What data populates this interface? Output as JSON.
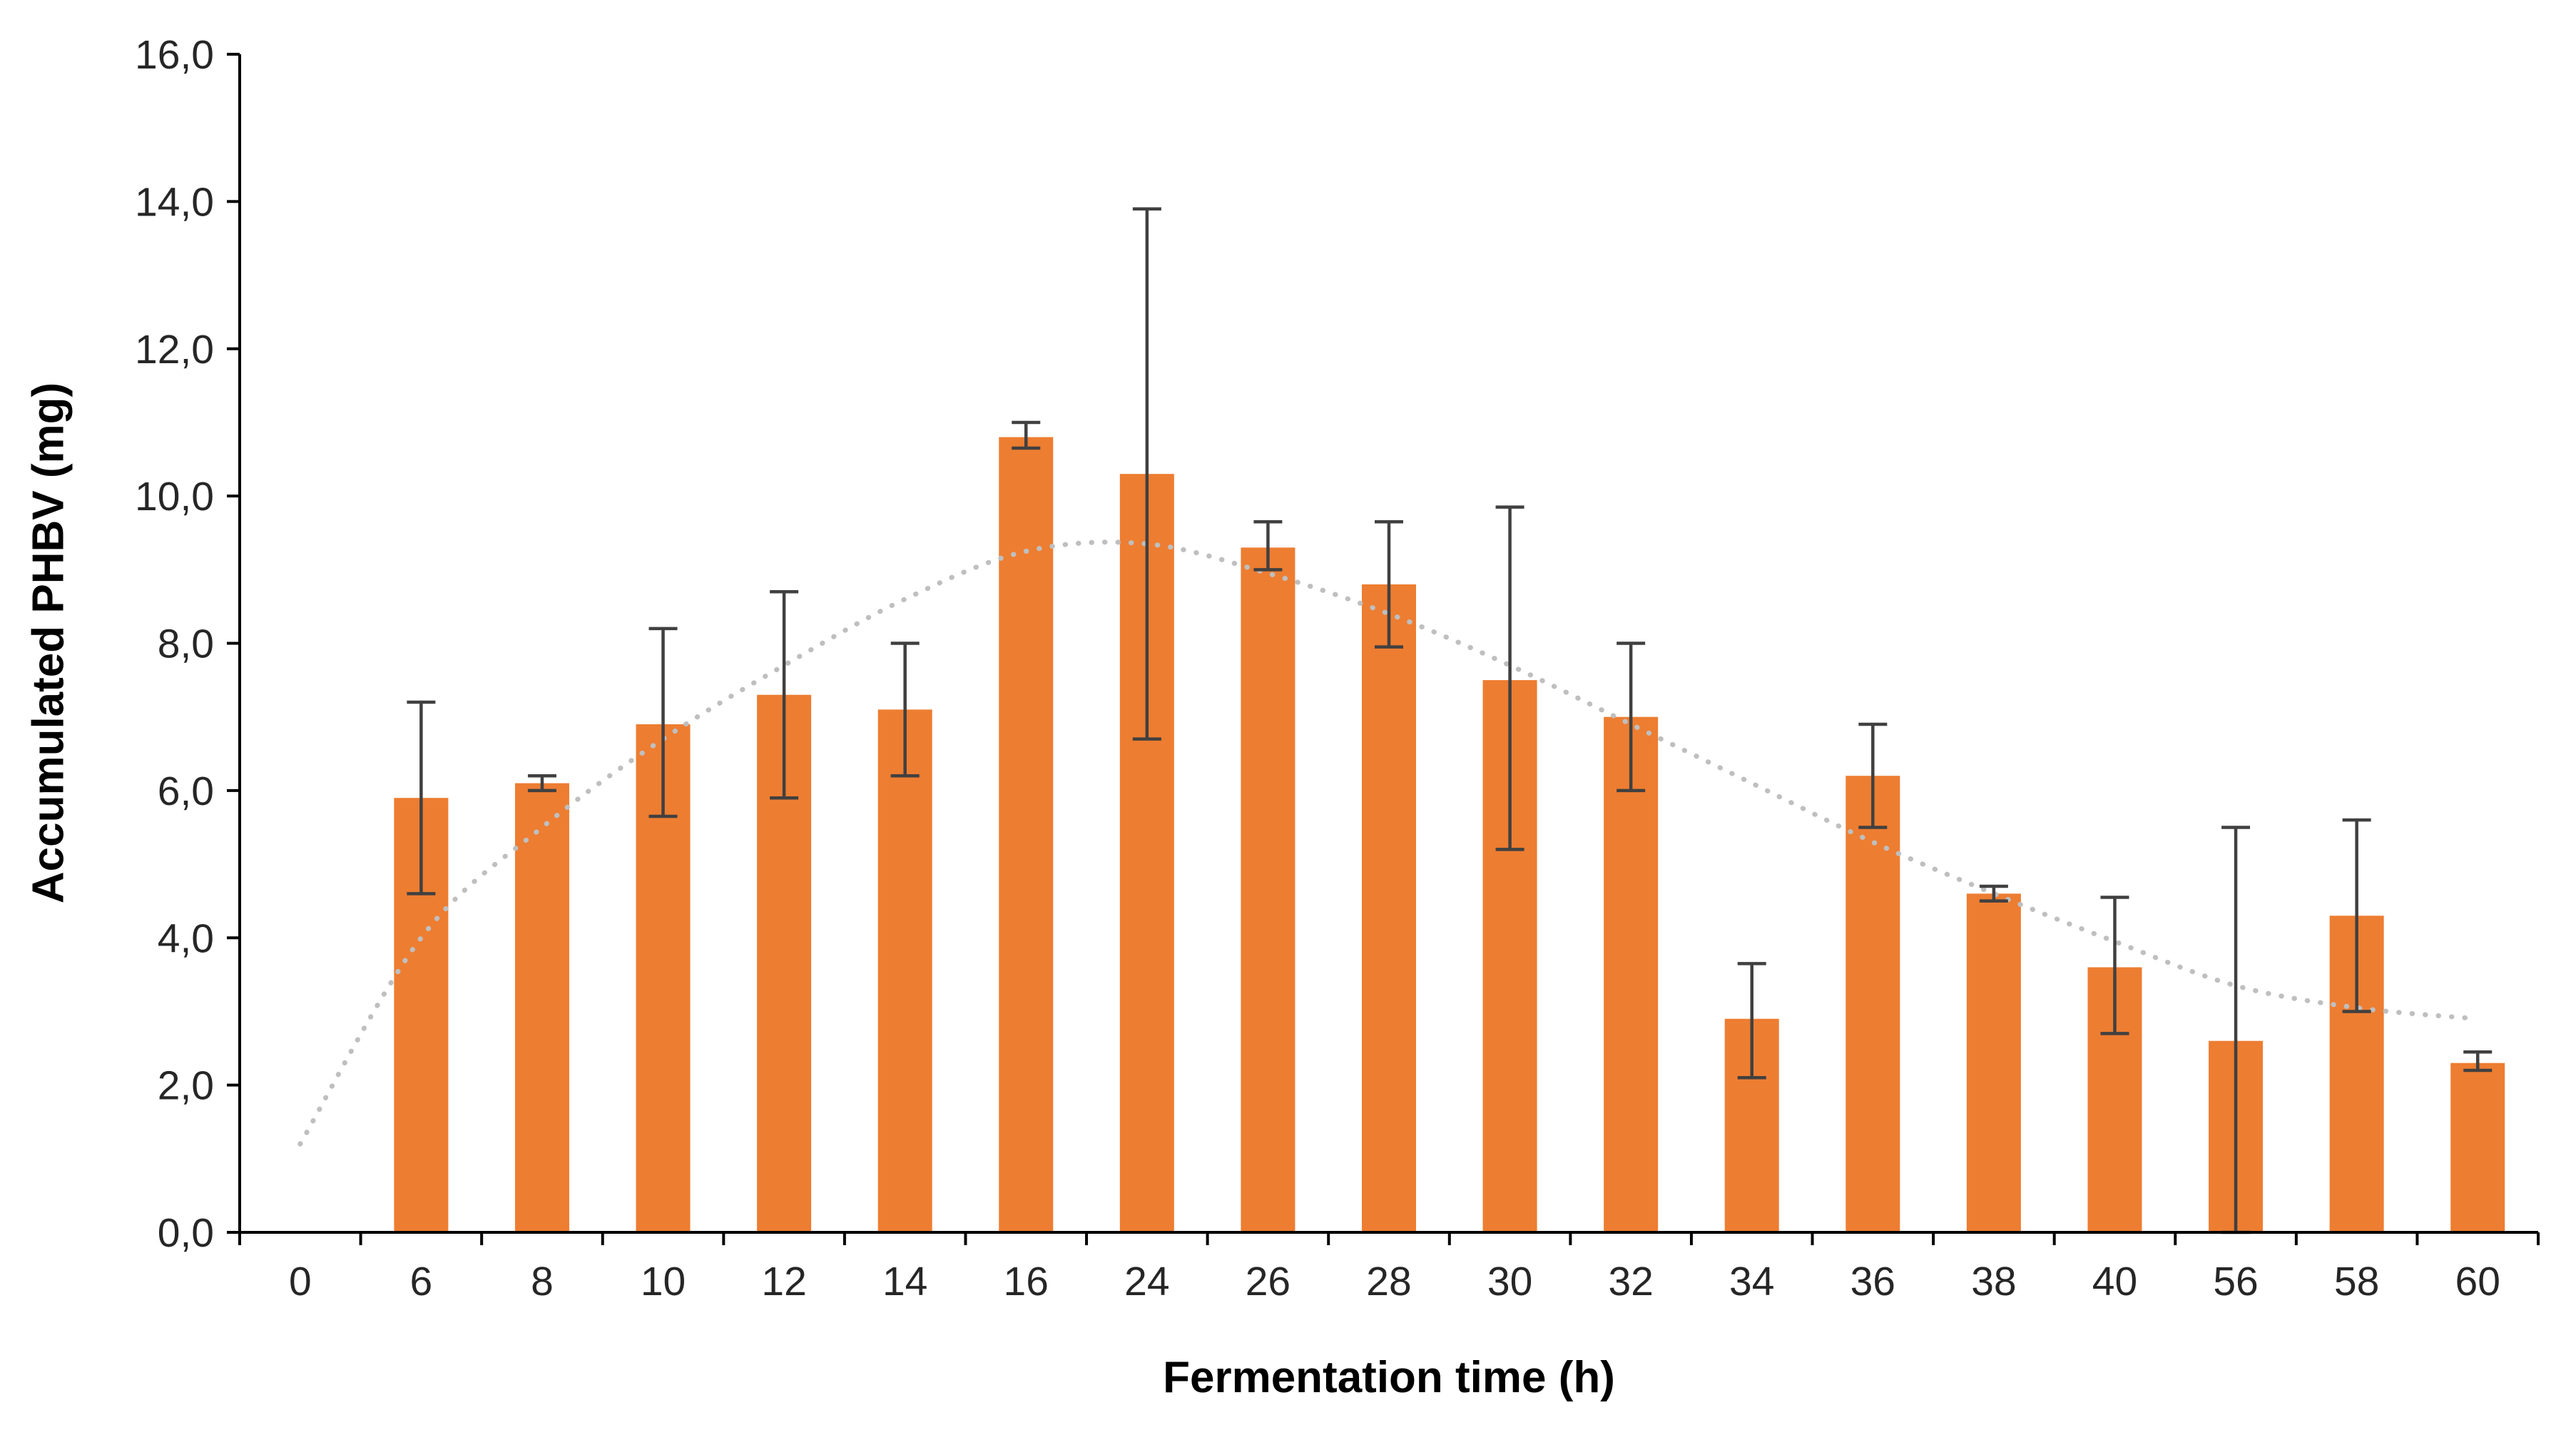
{
  "chart_data": {
    "type": "bar",
    "title": "",
    "xlabel": "Fermentation time (h)",
    "ylabel": "Accumulated PHBV (mg)",
    "categories": [
      "0",
      "6",
      "8",
      "10",
      "12",
      "14",
      "16",
      "24",
      "26",
      "28",
      "30",
      "32",
      "34",
      "36",
      "38",
      "40",
      "56",
      "58",
      "60"
    ],
    "values": [
      0,
      5.9,
      6.1,
      6.9,
      7.3,
      7.1,
      10.8,
      10.3,
      9.3,
      8.8,
      7.5,
      7.0,
      2.9,
      6.2,
      4.6,
      3.6,
      2.6,
      4.3,
      2.3
    ],
    "error_low": [
      0,
      1.3,
      0.1,
      1.25,
      1.4,
      0.9,
      0.15,
      3.6,
      0.3,
      0.85,
      2.3,
      1.0,
      0.8,
      0.7,
      0.1,
      0.9,
      2.6,
      1.3,
      0.1
    ],
    "error_high": [
      0,
      1.3,
      0.1,
      1.3,
      1.4,
      0.9,
      0.2,
      3.6,
      0.35,
      0.85,
      2.35,
      1.0,
      0.75,
      0.7,
      0.1,
      0.95,
      2.9,
      1.3,
      0.15
    ],
    "trendline": [
      1.2,
      4.0,
      5.5,
      6.7,
      7.7,
      8.6,
      9.25,
      9.35,
      8.95,
      8.4,
      7.7,
      6.9,
      6.1,
      5.3,
      4.6,
      3.95,
      3.35,
      3.05,
      2.9
    ],
    "ylim": [
      0,
      16
    ],
    "ytick_step": 2,
    "ytick_labels": [
      "0,0",
      "2,0",
      "4,0",
      "6,0",
      "8,0",
      "10,0",
      "12,0",
      "14,0",
      "16,0"
    ],
    "bar_color": "#ED7D31",
    "error_color": "#404040",
    "trend_color": "#BFBFBF",
    "axis_color": "#000000",
    "tick_label_color": "#262626",
    "legend": "none",
    "grid": false
  }
}
